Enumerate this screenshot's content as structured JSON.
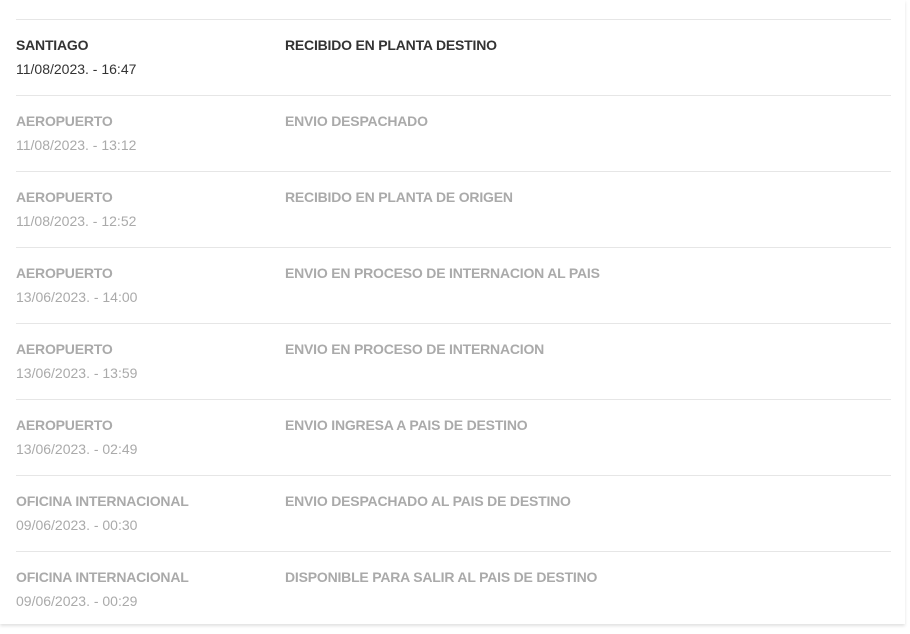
{
  "events": [
    {
      "location": "SANTIAGO",
      "datetime": "11/08/2023. - 16:47",
      "status": "RECIBIDO EN PLANTA DESTINO",
      "current": true
    },
    {
      "location": "AEROPUERTO",
      "datetime": "11/08/2023. - 13:12",
      "status": "ENVIO DESPACHADO",
      "current": false
    },
    {
      "location": "AEROPUERTO",
      "datetime": "11/08/2023. - 12:52",
      "status": "RECIBIDO EN PLANTA DE ORIGEN",
      "current": false
    },
    {
      "location": "AEROPUERTO",
      "datetime": "13/06/2023. - 14:00",
      "status": "ENVIO EN PROCESO DE INTERNACION AL PAIS",
      "current": false
    },
    {
      "location": "AEROPUERTO",
      "datetime": "13/06/2023. - 13:59",
      "status": "ENVIO EN PROCESO DE INTERNACION",
      "current": false
    },
    {
      "location": "AEROPUERTO",
      "datetime": "13/06/2023. - 02:49",
      "status": "ENVIO INGRESA A PAIS DE DESTINO",
      "current": false
    },
    {
      "location": "OFICINA INTERNACIONAL",
      "datetime": "09/06/2023. - 00:30",
      "status": "ENVIO DESPACHADO AL PAIS DE DESTINO",
      "current": false
    },
    {
      "location": "OFICINA INTERNACIONAL",
      "datetime": "09/06/2023. - 00:29",
      "status": "DISPONIBLE PARA SALIR AL PAIS DE DESTINO",
      "current": false
    }
  ],
  "colors": {
    "current_text": "#333333",
    "past_text": "#aaaaaa",
    "divider": "#e6e6e6"
  }
}
